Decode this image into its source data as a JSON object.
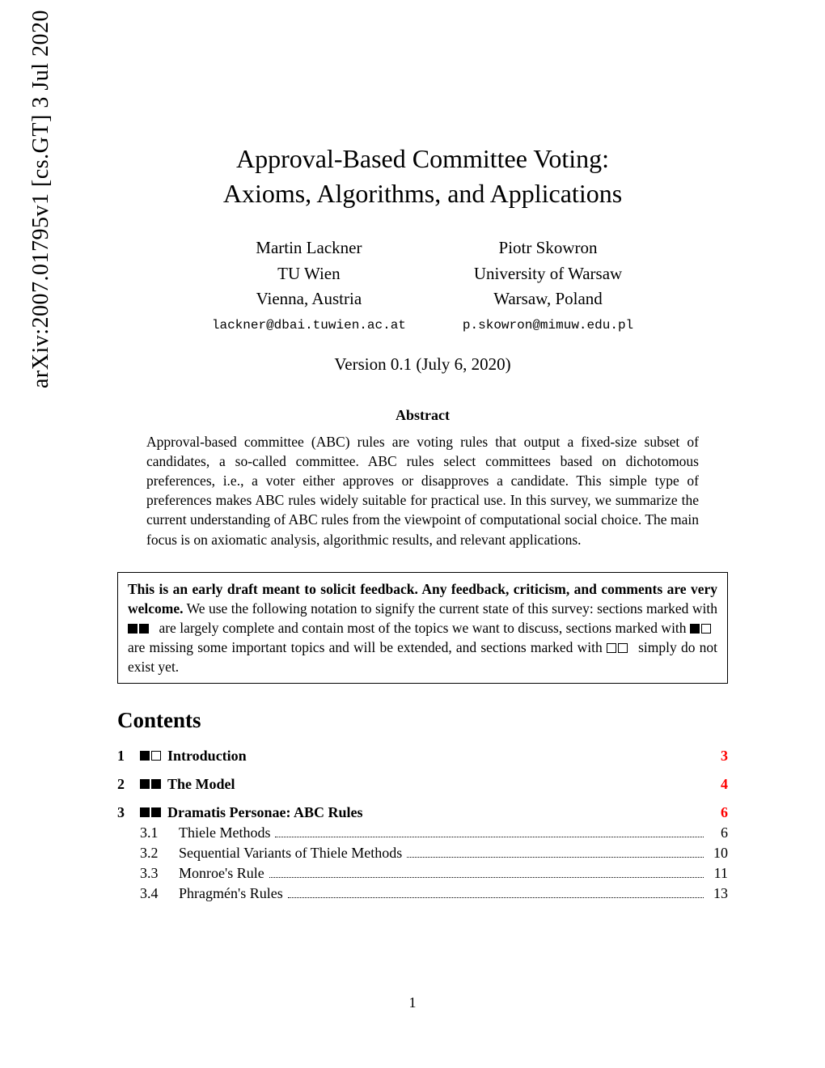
{
  "arxiv_stamp": "arXiv:2007.01795v1  [cs.GT]  3 Jul 2020",
  "title_line1": "Approval-Based Committee Voting:",
  "title_line2": "Axioms, Algorithms, and Applications",
  "authors": [
    {
      "name": "Martin Lackner",
      "affil": "TU Wien",
      "city": "Vienna, Austria",
      "email": "lackner@dbai.tuwien.ac.at"
    },
    {
      "name": "Piotr Skowron",
      "affil": "University of Warsaw",
      "city": "Warsaw, Poland",
      "email": "p.skowron@mimuw.edu.pl"
    }
  ],
  "version": "Version 0.1 (July 6, 2020)",
  "abstract_label": "Abstract",
  "abstract": "Approval-based committee (ABC) rules are voting rules that output a fixed-size subset of candidates, a so-called committee. ABC rules select committees based on dichotomous preferences, i.e., a voter either approves or disapproves a candidate. This simple type of preferences makes ABC rules widely suitable for practical use. In this survey, we summarize the current understanding of ABC rules from the viewpoint of computational social choice. The main focus is on axiomatic analysis, algorithmic results, and relevant applications.",
  "notice_bold": "This is an early draft meant to solicit feedback. Any feedback, criticism, and comments are very welcome.",
  "notice_t1": " We use the following notation to signify the current state of this survey: sections marked with ",
  "notice_t2": " are largely complete and contain most of the topics we want to discuss, sections marked with ",
  "notice_t3": " are missing some important topics and will be extended, and sections marked with ",
  "notice_t4": " simply do not exist yet.",
  "contents_label": "Contents",
  "toc": {
    "sections": [
      {
        "num": "1",
        "squares": "fe",
        "label": "Introduction",
        "page": "3",
        "page_red": true
      },
      {
        "num": "2",
        "squares": "ff",
        "label": "The Model",
        "page": "4",
        "page_red": true
      },
      {
        "num": "3",
        "squares": "ff",
        "label": "Dramatis Personae: ABC Rules",
        "page": "6",
        "page_red": true,
        "subs": [
          {
            "num": "3.1",
            "label": "Thiele Methods",
            "page": "6"
          },
          {
            "num": "3.2",
            "label": "Sequential Variants of Thiele Methods",
            "page": "10"
          },
          {
            "num": "3.3",
            "label": "Monroe's Rule",
            "page": "11"
          },
          {
            "num": "3.4",
            "label": "Phragmén's Rules",
            "page": "13"
          }
        ]
      }
    ]
  },
  "page_number": "1",
  "colors": {
    "link_red": "#ff0000",
    "text": "#000000",
    "bg": "#ffffff"
  }
}
